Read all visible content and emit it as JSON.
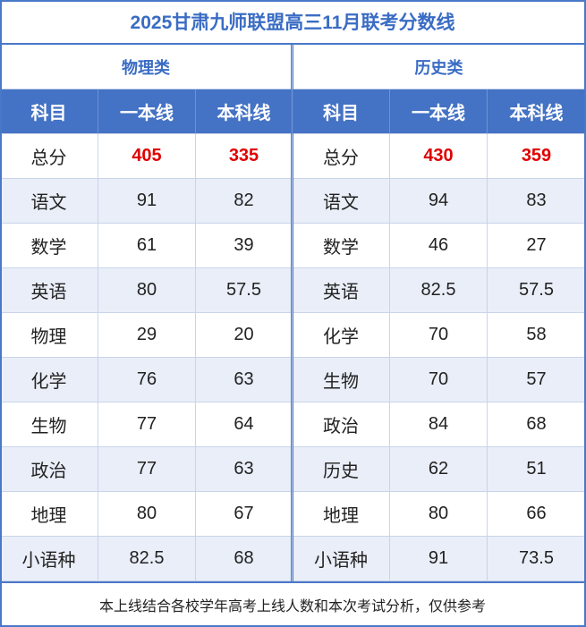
{
  "title": "2025甘肃九师联盟高三11月联考分数线",
  "groups": [
    "物理类",
    "历史类"
  ],
  "columns": [
    "科目",
    "一本线",
    "本科线",
    "科目",
    "一本线",
    "本科线"
  ],
  "rows": [
    [
      "总分",
      "405",
      "335",
      "总分",
      "430",
      "359"
    ],
    [
      "语文",
      "91",
      "82",
      "语文",
      "94",
      "83"
    ],
    [
      "数学",
      "61",
      "39",
      "数学",
      "46",
      "27"
    ],
    [
      "英语",
      "80",
      "57.5",
      "英语",
      "82.5",
      "57.5"
    ],
    [
      "物理",
      "29",
      "20",
      "化学",
      "70",
      "58"
    ],
    [
      "化学",
      "76",
      "63",
      "生物",
      "70",
      "57"
    ],
    [
      "生物",
      "77",
      "64",
      "政治",
      "84",
      "68"
    ],
    [
      "政治",
      "77",
      "63",
      "历史",
      "62",
      "51"
    ],
    [
      "地理",
      "80",
      "67",
      "地理",
      "80",
      "66"
    ],
    [
      "小语种",
      "82.5",
      "68",
      "小语种",
      "91",
      "73.5"
    ]
  ],
  "note": "本上线结合各校学年高考上线人数和本次考试分析，仅供参考"
}
